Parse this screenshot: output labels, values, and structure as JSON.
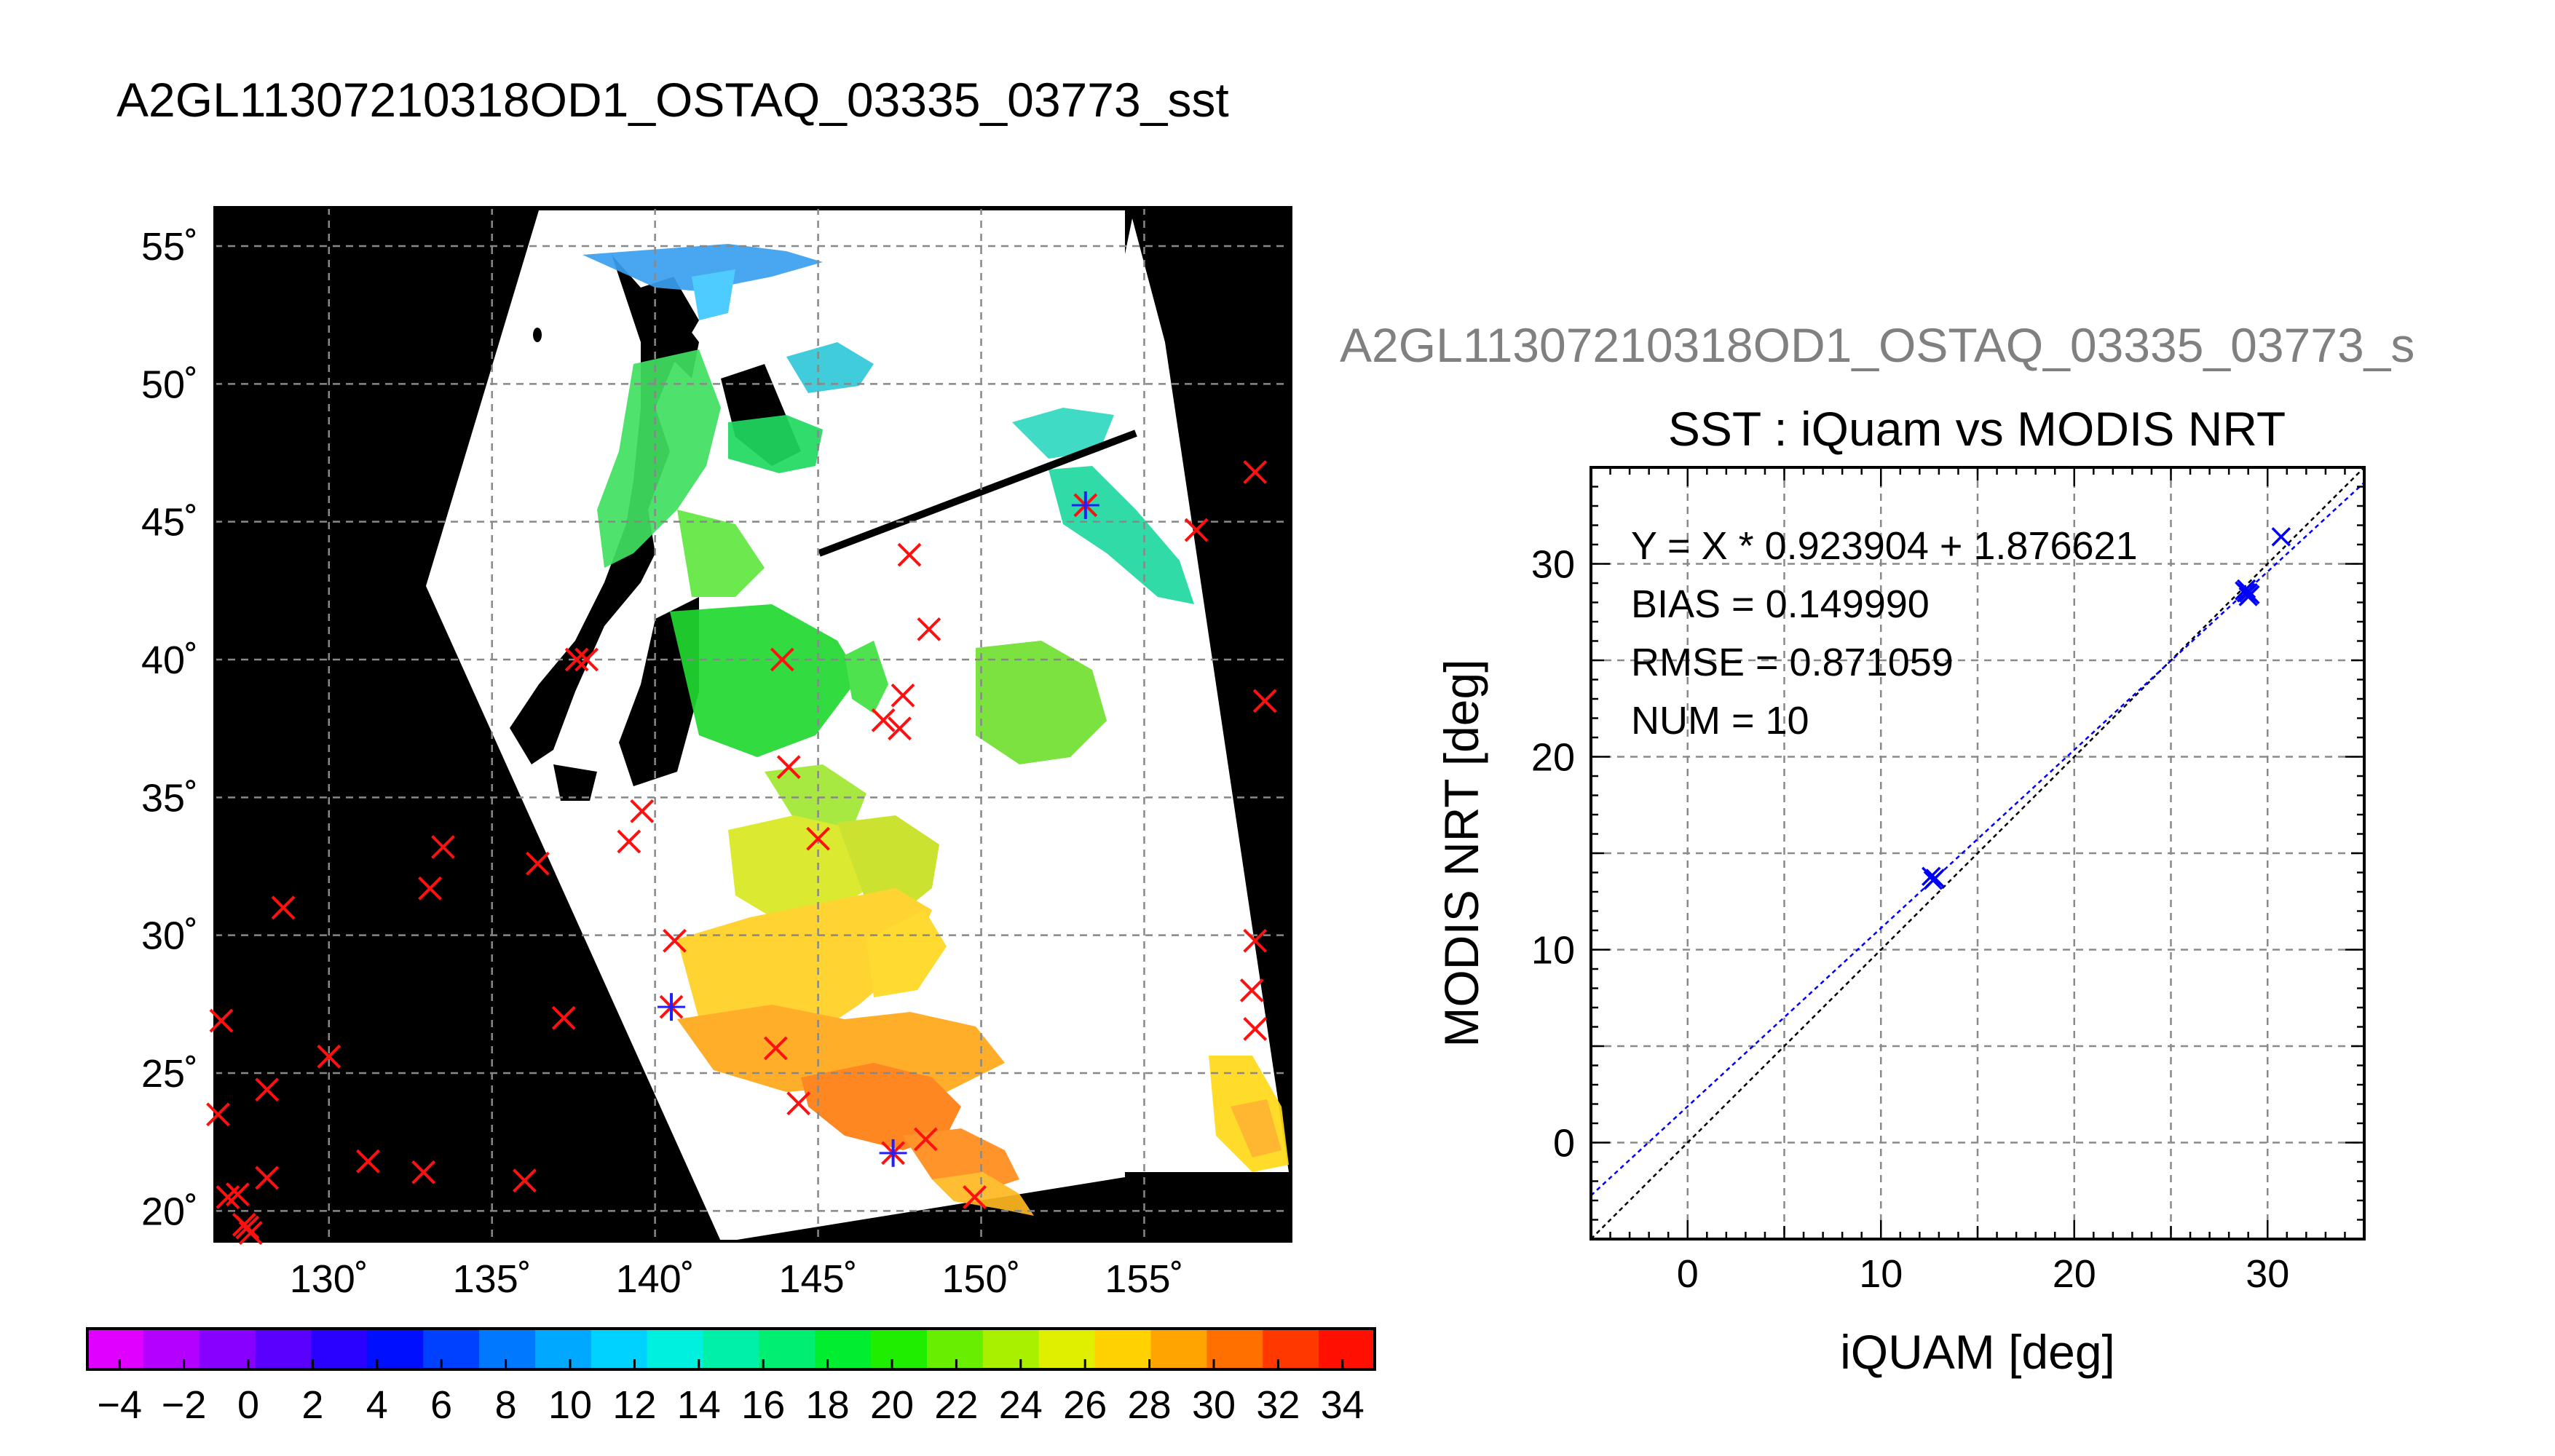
{
  "figure_title": "A2GL11307210318OD1_OSTAQ_03335_03773_sst",
  "scatter_overlay_title": "A2GL11307210318OD1_OSTAQ_03335_03773_s",
  "map": {
    "lon_ticks": [
      "130˚",
      "135˚",
      "140˚",
      "145˚",
      "150˚",
      "155˚"
    ],
    "lat_ticks": [
      "55˚",
      "50˚",
      "45˚",
      "40˚",
      "35˚",
      "30˚",
      "25˚",
      "20˚"
    ],
    "lon_range": [
      126.5,
      159.5
    ],
    "lat_range": [
      18.9,
      56.4
    ],
    "red_markers": [
      [
        126.7,
        26.9
      ],
      [
        126.6,
        23.5
      ],
      [
        126.9,
        20.5
      ],
      [
        127.2,
        20.6
      ],
      [
        127.4,
        19.5
      ],
      [
        127.6,
        19.2
      ],
      [
        127.5,
        19.4
      ],
      [
        128.1,
        24.4
      ],
      [
        128.1,
        21.2
      ],
      [
        128.6,
        31.0
      ],
      [
        130.0,
        25.6
      ],
      [
        131.2,
        21.8
      ],
      [
        132.9,
        21.4
      ],
      [
        133.1,
        31.7
      ],
      [
        133.5,
        33.2
      ],
      [
        136.0,
        21.1
      ],
      [
        136.4,
        32.6
      ],
      [
        137.2,
        27.0
      ],
      [
        137.6,
        40.0
      ],
      [
        137.9,
        40.0
      ],
      [
        139.2,
        33.4
      ],
      [
        139.6,
        34.5
      ],
      [
        140.6,
        29.8
      ],
      [
        143.7,
        25.9
      ],
      [
        143.9,
        40.0
      ],
      [
        144.1,
        36.1
      ],
      [
        144.4,
        23.9
      ],
      [
        145.0,
        33.5
      ],
      [
        147.0,
        37.8
      ],
      [
        147.5,
        37.5
      ],
      [
        147.6,
        38.7
      ],
      [
        147.8,
        43.8
      ],
      [
        148.3,
        22.6
      ],
      [
        148.4,
        41.1
      ],
      [
        149.8,
        20.5
      ],
      [
        156.6,
        44.7
      ],
      [
        158.4,
        46.8
      ],
      [
        158.3,
        28.0
      ],
      [
        158.4,
        29.8
      ],
      [
        158.4,
        26.6
      ],
      [
        158.7,
        38.5
      ]
    ],
    "blue_markers": [
      [
        153.2,
        45.6
      ],
      [
        140.5,
        27.4
      ],
      [
        147.3,
        22.1
      ]
    ]
  },
  "colorbar": {
    "labels": [
      "−4",
      "−2",
      "0",
      "2",
      "4",
      "6",
      "8",
      "10",
      "12",
      "14",
      "16",
      "18",
      "20",
      "22",
      "24",
      "26",
      "28",
      "30",
      "32",
      "34"
    ],
    "min": -5,
    "max": 35,
    "colors": [
      "#e000ff",
      "#b300ff",
      "#8800ff",
      "#5a00ff",
      "#2a00ff",
      "#0010ff",
      "#0040ff",
      "#0078ff",
      "#00a8ff",
      "#00d2ff",
      "#00f0e0",
      "#00f0a8",
      "#00ef70",
      "#00ee30",
      "#20ee00",
      "#68ee00",
      "#a8f000",
      "#e0ee00",
      "#ffd200",
      "#ffa400",
      "#ff7000",
      "#ff3800",
      "#ff1000"
    ]
  },
  "chart_data": {
    "type": "scatter",
    "title": "SST : iQuam vs MODIS NRT",
    "xlabel": "iQUAM [deg]",
    "ylabel": "MODIS NRT [deg]",
    "xlim": [
      -5,
      35
    ],
    "ylim": [
      -5,
      35
    ],
    "xticks": [
      0,
      10,
      20,
      30
    ],
    "yticks": [
      0,
      10,
      20,
      30
    ],
    "grid": true,
    "series": [
      {
        "values": [
          [
            12.7,
            13.6
          ],
          [
            12.6,
            13.8
          ],
          [
            28.9,
            28.5
          ],
          [
            29.0,
            28.3
          ],
          [
            28.8,
            28.6
          ],
          [
            29.1,
            28.4
          ],
          [
            28.9,
            28.7
          ],
          [
            30.7,
            31.4
          ],
          [
            29.0,
            28.5
          ],
          [
            12.8,
            13.7
          ]
        ]
      }
    ],
    "fit_line": {
      "slope": 0.923904,
      "intercept": 1.876621,
      "color": "#0000ff"
    },
    "identity_line": {
      "slope": 1,
      "intercept": 0,
      "color": "#000000"
    },
    "annotations": [
      "Y = X * 0.923904 + 1.876621",
      "BIAS = 0.149990",
      "RMSE = 0.871059",
      "NUM = 10"
    ],
    "marker_color": "#0000ff"
  }
}
